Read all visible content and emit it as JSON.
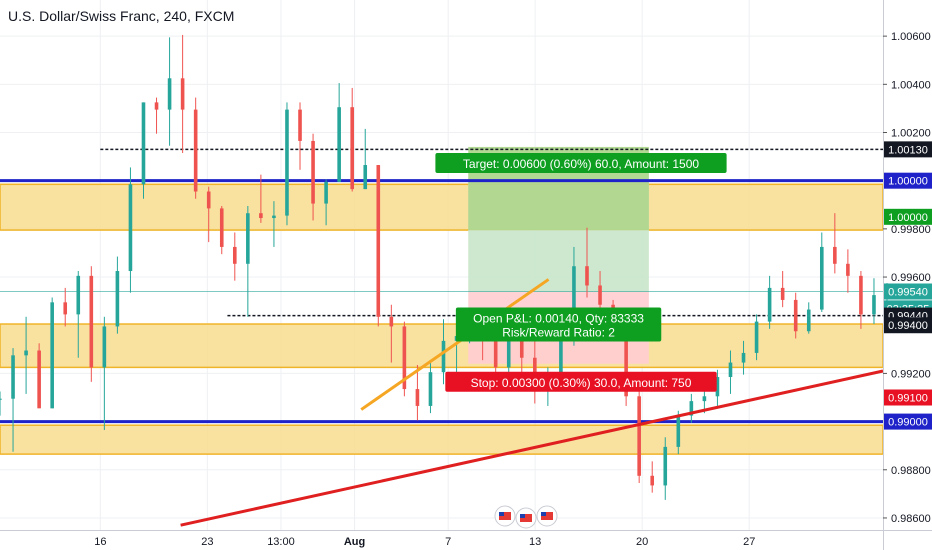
{
  "chart_data": {
    "type": "candlestick",
    "title": "U.S. Dollar/Swiss Franc, 240, FXCM",
    "ylim": [
      0.9855,
      1.0075
    ],
    "xlim": [
      0,
      132
    ],
    "grid": true,
    "colors": {
      "up": "#26a69a",
      "down": "#ef5350",
      "zone_fill": "#f8dc8e",
      "zone_border": "#f0b429",
      "blue_line": "#1e22c8",
      "red_line": "#e02020",
      "orange_line": "#f5a623",
      "target_fill": "#c8e6c9",
      "target_dark": "#9ccc65",
      "stop_fill": "#ffcdd2",
      "green_label": "#0e9f20",
      "red_label": "#e81123",
      "dark_label": "#131722"
    },
    "x_ticks": [
      {
        "x": 15,
        "label": "16"
      },
      {
        "x": 31,
        "label": "23"
      },
      {
        "x": 42,
        "label": "13:00"
      },
      {
        "x": 53,
        "label": "Aug"
      },
      {
        "x": 67,
        "label": "7"
      },
      {
        "x": 80,
        "label": "13"
      },
      {
        "x": 96,
        "label": "20"
      },
      {
        "x": 112,
        "label": "27"
      }
    ],
    "y_ticks": [
      {
        "y": 1.006,
        "label": "1.00600"
      },
      {
        "y": 1.004,
        "label": "1.00400"
      },
      {
        "y": 1.002,
        "label": "1.00200"
      },
      {
        "y": 0.998,
        "label": "0.99800"
      },
      {
        "y": 0.996,
        "label": "0.99600"
      },
      {
        "y": 0.992,
        "label": "0.99200"
      },
      {
        "y": 0.988,
        "label": "0.98800"
      },
      {
        "y": 0.986,
        "label": "0.98600"
      }
    ],
    "price_tags": [
      {
        "y": 1.0013,
        "label": "1.00130",
        "style": "dark"
      },
      {
        "y": 1.0,
        "label": "1.00000",
        "style": "blue"
      },
      {
        "y": 0.9985,
        "label": "1.00000",
        "style": "green"
      },
      {
        "y": 0.9954,
        "label": "0.99540",
        "style": "teal"
      },
      {
        "y": 0.9947,
        "label": "03:25:35",
        "style": "tealdark"
      },
      {
        "y": 0.9944,
        "label": "0.99440",
        "style": "dark"
      },
      {
        "y": 0.994,
        "label": "0.99400",
        "style": "dark"
      },
      {
        "y": 0.991,
        "label": "0.99100",
        "style": "red"
      },
      {
        "y": 0.99,
        "label": "0.99000",
        "style": "blue"
      }
    ],
    "zones": [
      {
        "y_top": 0.99985,
        "y_bottom": 0.99795
      },
      {
        "y_top": 0.99405,
        "y_bottom": 0.99225
      },
      {
        "y_top": 0.98985,
        "y_bottom": 0.98865
      }
    ],
    "horizontal_lines": [
      {
        "y": 1.0,
        "style": "blue"
      },
      {
        "y": 0.99,
        "style": "blue"
      },
      {
        "y": 1.0013,
        "style": "dotted",
        "x_start": 15
      },
      {
        "y": 0.9944,
        "style": "dotted",
        "x_start": 34
      },
      {
        "y": 0.9954,
        "style": "current"
      }
    ],
    "trend_lines": [
      {
        "x1": 27,
        "y1": 0.9857,
        "x2": 132,
        "y2": 0.9921,
        "style": "red"
      },
      {
        "x1": 54,
        "y1": 0.9905,
        "x2": 82,
        "y2": 0.9959,
        "style": "orange"
      }
    ],
    "position": {
      "x_start": 70,
      "x_end": 97,
      "entry": 0.9954,
      "target": 1.0014,
      "stop": 0.9924,
      "inner_target": 0.99795,
      "target_label": "Target: 0.00600 (0.60%) 60.0, Amount: 1500",
      "pnl_label": "Open P&L: 0.00140, Qty: 83333",
      "rr_label": "Risk/Reward Ratio: 2",
      "stop_label": "Stop: 0.00300 (0.30%) 30.0, Amount: 750"
    },
    "candles": [
      [
        0.99095,
        0.99125,
        0.99025,
        0.99095
      ],
      [
        0.99095,
        0.99305,
        0.98875,
        0.99275
      ],
      [
        0.99275,
        0.99435,
        0.99115,
        0.99295
      ],
      [
        0.99295,
        0.99325,
        0.99065,
        0.99055
      ],
      [
        0.99055,
        0.99515,
        0.99055,
        0.99495
      ],
      [
        0.99495,
        0.99555,
        0.99395,
        0.99445
      ],
      [
        0.99445,
        0.99625,
        0.99265,
        0.99605
      ],
      [
        0.99605,
        0.99645,
        0.99165,
        0.99225
      ],
      [
        0.99225,
        0.99435,
        0.98965,
        0.99395
      ],
      [
        0.99395,
        0.99685,
        0.99365,
        0.99625
      ],
      [
        0.99625,
        1.00055,
        0.99535,
        0.99985
      ],
      [
        0.99985,
        1.00325,
        0.99925,
        1.00325
      ],
      [
        1.00325,
        1.00345,
        1.00195,
        1.00295
      ],
      [
        1.00295,
        1.00595,
        1.00145,
        1.00425
      ],
      [
        1.00425,
        1.00605,
        1.00115,
        1.00295
      ],
      [
        1.00295,
        1.00345,
        0.99925,
        0.99955
      ],
      [
        0.99955,
        0.99975,
        0.99745,
        0.99885
      ],
      [
        0.99885,
        0.99895,
        0.99695,
        0.99725
      ],
      [
        0.99725,
        0.99785,
        0.99585,
        0.99655
      ],
      [
        0.99655,
        0.99895,
        0.99435,
        0.99865
      ],
      [
        0.99865,
        1.00025,
        0.99825,
        0.99845
      ],
      [
        0.99845,
        0.99915,
        0.99725,
        0.99855
      ],
      [
        0.99855,
        1.00325,
        0.99815,
        1.00295
      ],
      [
        1.00295,
        1.00325,
        1.00045,
        1.00165
      ],
      [
        1.00165,
        1.00195,
        0.99835,
        0.99905
      ],
      [
        0.99905,
        1.00005,
        0.99815,
        0.99995
      ],
      [
        0.99995,
        1.00405,
        0.99995,
        1.00305
      ],
      [
        1.00305,
        1.00385,
        0.99955,
        0.99965
      ],
      [
        0.99965,
        1.00215,
        0.99965,
        1.00065
      ],
      [
        1.00065,
        1.00065,
        0.99395,
        0.99435
      ],
      [
        0.99435,
        0.99485,
        0.99245,
        0.99395
      ],
      [
        0.99395,
        0.99415,
        0.99105,
        0.99135
      ],
      [
        0.99135,
        0.99235,
        0.99005,
        0.99065
      ],
      [
        0.99065,
        0.99255,
        0.99035,
        0.99205
      ],
      [
        0.99205,
        0.99425,
        0.99155,
        0.99335
      ],
      [
        0.99335,
        0.99455,
        0.99195,
        0.99355
      ],
      [
        0.99355,
        0.99435,
        0.99325,
        0.99365
      ],
      [
        0.99365,
        0.99415,
        0.99255,
        0.99335
      ],
      [
        0.99335,
        0.99405,
        0.99205,
        0.99225
      ],
      [
        0.99225,
        0.99475,
        0.99175,
        0.99425
      ],
      [
        0.99425,
        0.99435,
        0.99195,
        0.99265
      ],
      [
        0.99265,
        0.99395,
        0.99075,
        0.99125
      ],
      [
        0.99125,
        0.99225,
        0.99065,
        0.99185
      ],
      [
        0.99185,
        0.99465,
        0.99185,
        0.99335
      ],
      [
        0.99335,
        0.99725,
        0.99315,
        0.99645
      ],
      [
        0.99645,
        0.99805,
        0.99515,
        0.99565
      ],
      [
        0.99565,
        0.99625,
        0.99425,
        0.99485
      ],
      [
        0.99485,
        0.99505,
        0.99395,
        0.99445
      ],
      [
        0.99445,
        0.99455,
        0.99065,
        0.99105
      ],
      [
        0.99105,
        0.99135,
        0.98745,
        0.98775
      ],
      [
        0.98775,
        0.98835,
        0.98705,
        0.98735
      ],
      [
        0.98735,
        0.98935,
        0.98675,
        0.98895
      ],
      [
        0.98895,
        0.99045,
        0.98865,
        0.99025
      ],
      [
        0.99025,
        0.99115,
        0.98995,
        0.99085
      ],
      [
        0.99085,
        0.99135,
        0.99035,
        0.99105
      ],
      [
        0.99105,
        0.99215,
        0.99065,
        0.99185
      ],
      [
        0.99185,
        0.99295,
        0.99115,
        0.99245
      ],
      [
        0.99245,
        0.99335,
        0.99195,
        0.99285
      ],
      [
        0.99285,
        0.99445,
        0.99255,
        0.99415
      ],
      [
        0.99415,
        0.99605,
        0.99385,
        0.99555
      ],
      [
        0.99555,
        0.99625,
        0.99475,
        0.99505
      ],
      [
        0.99505,
        0.99535,
        0.99345,
        0.99375
      ],
      [
        0.99375,
        0.99495,
        0.99365,
        0.99465
      ],
      [
        0.99465,
        0.99785,
        0.99455,
        0.99725
      ],
      [
        0.99725,
        0.99865,
        0.99615,
        0.99655
      ],
      [
        0.99655,
        0.99715,
        0.99535,
        0.99605
      ],
      [
        0.99605,
        0.99625,
        0.99385,
        0.99445
      ],
      [
        0.99445,
        0.99595,
        0.99405,
        0.99525
      ],
      [
        0.99525,
        0.99575,
        0.99465,
        0.99535
      ]
    ]
  }
}
